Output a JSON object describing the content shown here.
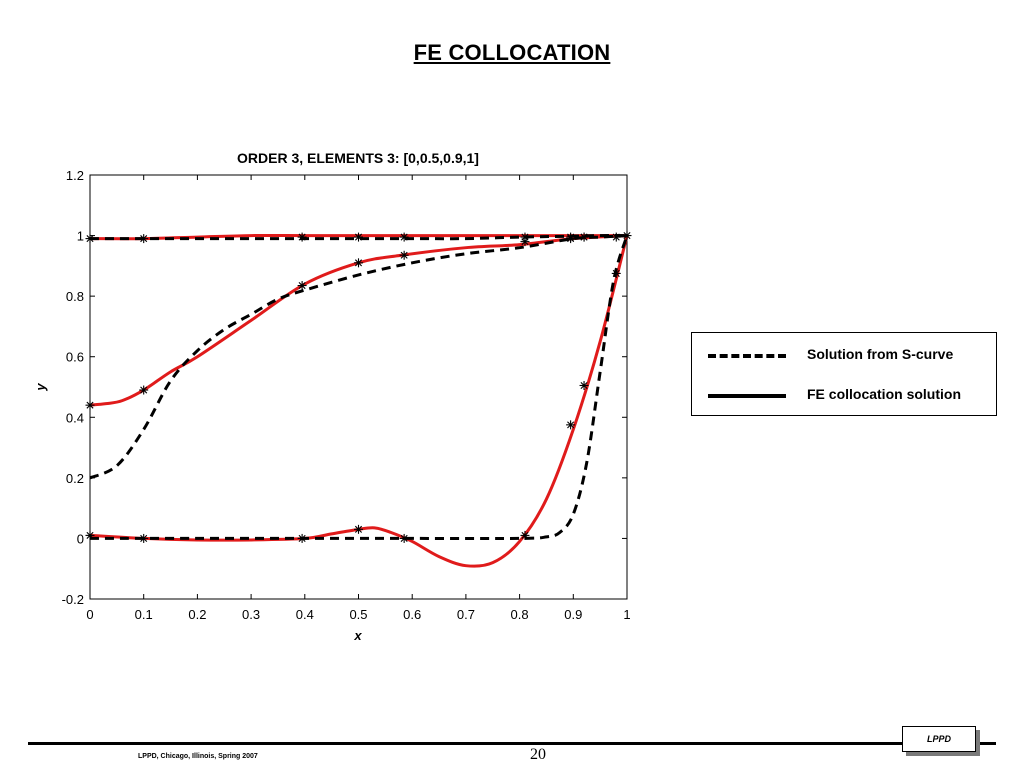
{
  "slide": {
    "title": "FE COLLOCATION",
    "footer_text": "LPPD, Chicago, Illinois, Spring 2007",
    "page_number": "20",
    "logo_text": "LPPD"
  },
  "legend": {
    "items": [
      {
        "label": "Solution from S-curve",
        "style": "dashed"
      },
      {
        "label": "FE collocation solution",
        "style": "solid"
      }
    ]
  },
  "chart_data": {
    "type": "line",
    "title": "ORDER 3, ELEMENTS 3: [0,0.5,0.9,1]",
    "xlabel": "x",
    "ylabel": "y",
    "xlim": [
      0,
      1
    ],
    "ylim": [
      -0.2,
      1.2
    ],
    "xticks": [
      0,
      0.1,
      0.2,
      0.3,
      0.4,
      0.5,
      0.6,
      0.7,
      0.8,
      0.9,
      1
    ],
    "xtick_labels": [
      "0",
      "0.1",
      "0.2",
      "0.3",
      "0.4",
      "0.5",
      "0.6",
      "0.7",
      "0.8",
      "0.9",
      "1"
    ],
    "yticks": [
      -0.2,
      0,
      0.2,
      0.4,
      0.6,
      0.8,
      1,
      1.2
    ],
    "ytick_labels": [
      "-0.2",
      "0",
      "0.2",
      "0.4",
      "0.6",
      "0.8",
      "1",
      "1.2"
    ],
    "grid": false,
    "legend_position": "right, outside plot",
    "colors": {
      "s_curve": "#000000",
      "fe_collocation": "#e01b1b",
      "markers": "#000000"
    },
    "series": [
      {
        "style": "dashed",
        "color": "#000000",
        "x": [
          0,
          0.1,
          0.2,
          0.3,
          0.4,
          0.5,
          0.6,
          0.7,
          0.8,
          0.9,
          0.95,
          1
        ],
        "y": [
          0.99,
          0.99,
          0.99,
          0.99,
          0.99,
          0.99,
          0.99,
          0.99,
          0.995,
          0.998,
          1.0,
          1.0
        ]
      },
      {
        "style": "dashed",
        "color": "#000000",
        "x": [
          0,
          0.05,
          0.1,
          0.15,
          0.2,
          0.25,
          0.3,
          0.35,
          0.4,
          0.5,
          0.6,
          0.7,
          0.8,
          0.9,
          0.95,
          1
        ],
        "y": [
          0.2,
          0.24,
          0.36,
          0.52,
          0.62,
          0.69,
          0.74,
          0.79,
          0.82,
          0.87,
          0.91,
          0.94,
          0.96,
          0.99,
          0.995,
          1.0
        ]
      },
      {
        "style": "dashed",
        "color": "#000000",
        "x": [
          0,
          0.2,
          0.4,
          0.6,
          0.8,
          0.85,
          0.875,
          0.9,
          0.925,
          0.95,
          0.975,
          1
        ],
        "y": [
          0.0,
          0.0,
          0.0,
          0.0,
          0.0,
          0.005,
          0.02,
          0.08,
          0.25,
          0.55,
          0.85,
          1.0
        ]
      },
      {
        "style": "solid",
        "color": "#e01b1b",
        "x": [
          0,
          0.1,
          0.2,
          0.3,
          0.4,
          0.5,
          0.6,
          0.7,
          0.8,
          0.9,
          1
        ],
        "y": [
          0.99,
          0.99,
          0.995,
          1.0,
          1.0,
          1.0,
          1.0,
          1.0,
          1.0,
          1.0,
          1.0
        ]
      },
      {
        "style": "solid",
        "color": "#e01b1b",
        "x": [
          0,
          0.03,
          0.06,
          0.1,
          0.15,
          0.2,
          0.3,
          0.4,
          0.5,
          0.58,
          0.7,
          0.8,
          0.9,
          1
        ],
        "y": [
          0.44,
          0.445,
          0.455,
          0.49,
          0.55,
          0.6,
          0.72,
          0.84,
          0.91,
          0.935,
          0.96,
          0.97,
          0.99,
          1.0
        ]
      },
      {
        "style": "solid",
        "color": "#e01b1b",
        "x": [
          0,
          0.1,
          0.2,
          0.3,
          0.4,
          0.45,
          0.5,
          0.53,
          0.56,
          0.6,
          0.65,
          0.7,
          0.75,
          0.8,
          0.85,
          0.9,
          0.95,
          1
        ],
        "y": [
          0.01,
          0.0,
          -0.005,
          -0.005,
          0.0,
          0.015,
          0.03,
          0.035,
          0.02,
          -0.01,
          -0.06,
          -0.09,
          -0.08,
          -0.01,
          0.13,
          0.36,
          0.65,
          1.0
        ]
      }
    ],
    "collocation_points": [
      {
        "x": 0,
        "y": 0.99
      },
      {
        "x": 0.1,
        "y": 0.99
      },
      {
        "x": 0.395,
        "y": 0.995
      },
      {
        "x": 0.5,
        "y": 0.995
      },
      {
        "x": 0.585,
        "y": 0.995
      },
      {
        "x": 0.81,
        "y": 0.995
      },
      {
        "x": 0.895,
        "y": 0.995
      },
      {
        "x": 0.92,
        "y": 0.995
      },
      {
        "x": 0.98,
        "y": 0.995
      },
      {
        "x": 1,
        "y": 1.0
      },
      {
        "x": 0,
        "y": 0.44
      },
      {
        "x": 0.1,
        "y": 0.49
      },
      {
        "x": 0.395,
        "y": 0.835
      },
      {
        "x": 0.5,
        "y": 0.91
      },
      {
        "x": 0.585,
        "y": 0.935
      },
      {
        "x": 0.81,
        "y": 0.98
      },
      {
        "x": 0.895,
        "y": 0.99
      },
      {
        "x": 0.92,
        "y": 0.995
      },
      {
        "x": 0,
        "y": 0.01
      },
      {
        "x": 0.1,
        "y": 0.0
      },
      {
        "x": 0.395,
        "y": 0.0
      },
      {
        "x": 0.5,
        "y": 0.03
      },
      {
        "x": 0.585,
        "y": 0.0
      },
      {
        "x": 0.81,
        "y": 0.01
      },
      {
        "x": 0.895,
        "y": 0.375
      },
      {
        "x": 0.92,
        "y": 0.505
      },
      {
        "x": 0.98,
        "y": 0.875
      }
    ]
  }
}
